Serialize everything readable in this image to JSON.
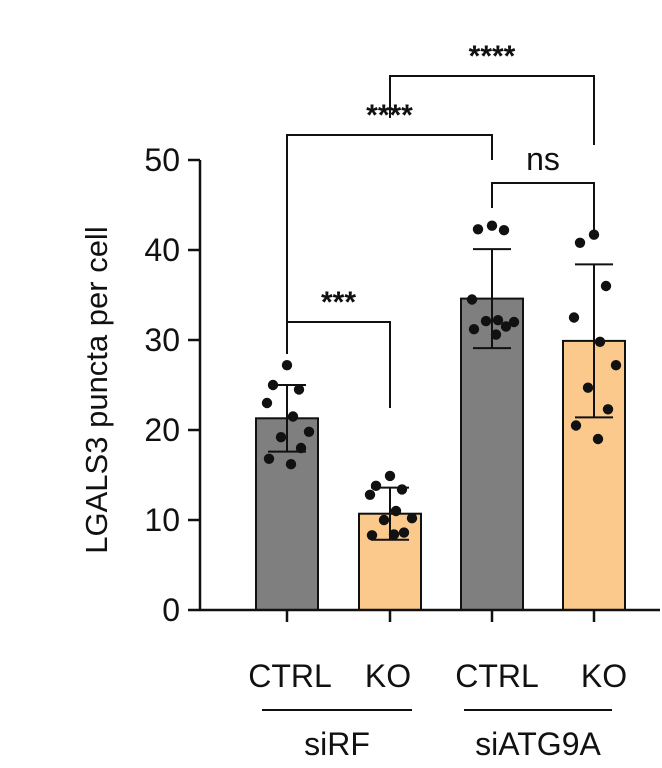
{
  "chart_data": {
    "type": "bar",
    "ylabel": "LGALS3 puncta per cell",
    "ylim": [
      0,
      50
    ],
    "yticks": [
      0,
      10,
      20,
      30,
      40,
      50
    ],
    "categories": [
      "CTRL",
      "KO",
      "CTRL",
      "KO"
    ],
    "groups": [
      {
        "label": "siRF",
        "bars": [
          0,
          1
        ]
      },
      {
        "label": "siATG9A",
        "bars": [
          2,
          3
        ]
      }
    ],
    "values": [
      21.3,
      10.7,
      34.6,
      29.9
    ],
    "errors": [
      3.7,
      2.9,
      5.5,
      8.5
    ],
    "bar_colors": [
      "#7f7f7f",
      "#fbc98c",
      "#7f7f7f",
      "#fbc98c"
    ],
    "points": [
      [
        27.2,
        25.0,
        24.5,
        23.0,
        21.5,
        19.8,
        19.2,
        18.0,
        16.8,
        16.2
      ],
      [
        14.9,
        13.8,
        13.4,
        12.8,
        11.0,
        10.2,
        10.0,
        8.6,
        8.3,
        8.4
      ],
      [
        42.7,
        42.3,
        42.2,
        34.5,
        32.2,
        32.0,
        32.1,
        31.5,
        31.2,
        30.6
      ],
      [
        41.7,
        40.8,
        36.0,
        32.5,
        29.8,
        27.2,
        24.7,
        22.3,
        20.5,
        19.0
      ]
    ],
    "significance": [
      {
        "from": 0,
        "to": 1,
        "label": "***"
      },
      {
        "from": 2,
        "to": 3,
        "label": "ns"
      },
      {
        "from": 0,
        "to": 2,
        "label": "****"
      },
      {
        "from": 1,
        "to": 3,
        "label": "****"
      }
    ]
  }
}
